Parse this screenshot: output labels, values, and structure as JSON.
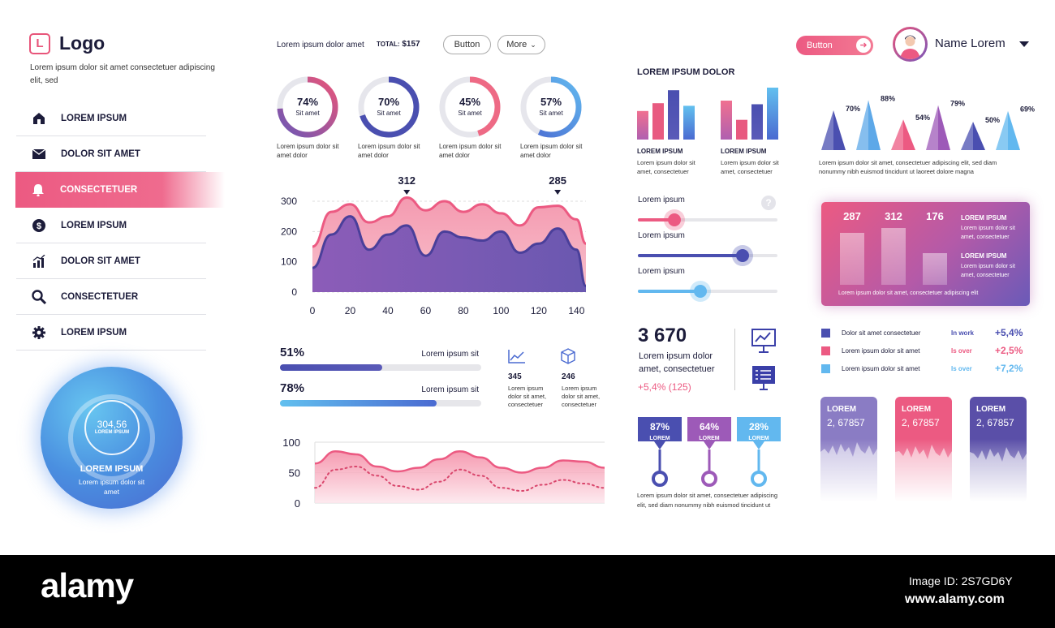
{
  "brand": {
    "logo_letter": "L",
    "logo_text": "Logo",
    "subtitle": "Lorem ipsum dolor sit amet consectetuer adipiscing elit, sed"
  },
  "nav": [
    {
      "label": "LOREM IPSUM",
      "icon": "home-icon"
    },
    {
      "label": "DOLOR SIT AMET",
      "icon": "mail-icon"
    },
    {
      "label": "CONSECTETUER",
      "icon": "bell-icon",
      "active": true
    },
    {
      "label": "LOREM IPSUM",
      "icon": "dollar-icon"
    },
    {
      "label": "DOLOR SIT AMET",
      "icon": "chart-icon"
    },
    {
      "label": "CONSECTETUER",
      "icon": "search-icon"
    },
    {
      "label": "LOREM IPSUM",
      "icon": "gear-icon"
    }
  ],
  "circle_widget": {
    "value": "304,56",
    "inner_label": "LOREM IPSUM",
    "title": "LOREM IPSUM",
    "text": "Lorem ipsum dolor sit amet"
  },
  "header": {
    "text": "Lorem ipsum dolor amet",
    "total_label": "TOTAL:",
    "total_value": "$157",
    "button_label": "Button",
    "more_label": "More",
    "pink_button_label": "Button",
    "user_name": "Name Lorem"
  },
  "donuts": [
    {
      "pct": "74%",
      "value": 0.74,
      "sub": "Sit amet",
      "caption": "Lorem ipsum dolor sit amet dolor",
      "c1": "#e8557a",
      "c2": "#6d57b5"
    },
    {
      "pct": "70%",
      "value": 0.7,
      "sub": "Sit amet",
      "caption": "Lorem ipsum dolor sit amet dolor",
      "c1": "#4a4fb0",
      "c2": "#4a4fb0"
    },
    {
      "pct": "45%",
      "value": 0.45,
      "sub": "Sit amet",
      "caption": "Lorem ipsum dolor sit amet dolor",
      "c1": "#ee6a85",
      "c2": "#ee6a85"
    },
    {
      "pct": "57%",
      "value": 0.57,
      "sub": "Sit amet",
      "caption": "Lorem ipsum dolor sit amet dolor",
      "c1": "#62b8ef",
      "c2": "#4a6ad1"
    }
  ],
  "chart_data": [
    {
      "type": "area",
      "x": [
        0,
        10,
        20,
        30,
        40,
        50,
        60,
        70,
        80,
        90,
        100,
        110,
        120,
        130,
        140,
        145
      ],
      "xticks": [
        "0",
        "20",
        "40",
        "60",
        "80",
        "100",
        "120",
        "140"
      ],
      "yticks": [
        "0",
        "100",
        "200",
        "300"
      ],
      "ylim": [
        0,
        300
      ],
      "series": [
        {
          "values": [
            150,
            265,
            290,
            230,
            250,
            312,
            270,
            300,
            265,
            290,
            260,
            220,
            280,
            285,
            240,
            160
          ],
          "color": "#f0718f"
        },
        {
          "values": [
            80,
            190,
            250,
            140,
            190,
            220,
            120,
            200,
            180,
            170,
            200,
            130,
            160,
            210,
            140,
            20
          ],
          "color": "#5a4fa8"
        }
      ],
      "annotations": [
        {
          "x": 50,
          "label": "312"
        },
        {
          "x": 130,
          "label": "285"
        }
      ]
    },
    {
      "type": "area",
      "x": [
        0,
        10,
        20,
        30,
        40,
        50,
        60,
        70,
        80,
        90,
        100,
        110,
        120,
        130,
        140
      ],
      "yticks": [
        "0",
        "50",
        "100"
      ],
      "ylim": [
        0,
        100
      ],
      "series": [
        {
          "values": [
            65,
            85,
            80,
            60,
            52,
            58,
            72,
            85,
            75,
            58,
            50,
            58,
            70,
            68,
            58
          ],
          "color": "#ec5a82"
        },
        {
          "values": [
            25,
            55,
            60,
            45,
            28,
            22,
            35,
            55,
            45,
            25,
            20,
            30,
            38,
            32,
            25
          ],
          "color": "#ec5a82",
          "dotted": true
        }
      ]
    },
    {
      "type": "bar",
      "title": "LOREM IPSUM DOLOR",
      "groups": [
        {
          "label": "LOREM IPSUM",
          "text": "Lorem ipsum dolor sit amet, consectetuer",
          "values": [
            55,
            70,
            95,
            65
          ]
        },
        {
          "label": "LOREM IPSUM",
          "text": "Lorem ipsum dolor sit amet, consectetuer",
          "values": [
            75,
            38,
            68,
            100
          ]
        }
      ]
    },
    {
      "type": "bar",
      "labels": [
        "70%",
        "88%",
        "54%",
        "79%",
        "50%",
        "69%"
      ],
      "values": [
        70,
        88,
        54,
        79,
        50,
        69
      ],
      "colors": [
        "#4a4fb0",
        "#5da8e8",
        "#ec5a82",
        "#9d5ab8",
        "#4a4fb0",
        "#62b8ef"
      ],
      "caption": "Lorem ipsum dolor sit amet, consectetuer adipiscing elit, sed diam nonummy nibh euismod tincidunt ut laoreet dolore magna"
    },
    {
      "type": "bar",
      "labels": [
        "287",
        "312",
        "176"
      ],
      "values": [
        287,
        312,
        176
      ],
      "side": [
        {
          "title": "LOREM IPSUM",
          "text": "Lorem ipsum dolor sit amet, consectetuer"
        },
        {
          "title": "LOREM IPSUM",
          "text": "Lorem ipsum dolor sit amet, consectetuer"
        }
      ],
      "footer": "Lorem ipsum dolor sit amet, consectetuer adipiscing elit"
    }
  ],
  "progress": [
    {
      "pct": "51%",
      "value": 0.51,
      "label": "Lorem ipsum sit"
    },
    {
      "pct": "78%",
      "value": 0.78,
      "label": "Lorem ipsum sit"
    }
  ],
  "mini_stats": [
    {
      "icon": "line-chart-icon",
      "value": "345",
      "text": "Lorem ipsum dolor sit amet, consectetuer"
    },
    {
      "icon": "cube-icon",
      "value": "246",
      "text": "Lorem ipsum dolor sit amet, consectetuer"
    }
  ],
  "sliders": [
    {
      "label": "Lorem ipsum",
      "value": 0.26,
      "color": "#ec5a82"
    },
    {
      "label": "Lorem ipsum",
      "value": 0.75,
      "color": "#4a4fb0"
    },
    {
      "label": "Lorem ipsum",
      "value": 0.45,
      "color": "#62b8ef"
    }
  ],
  "big_stat": {
    "value": "3 670",
    "text": "Lorem ipsum dolor amet, consectetuer",
    "change": "+5,4% (125)"
  },
  "markers": [
    {
      "pct": "87%",
      "label": "LOREM",
      "color": "#4a4fb0"
    },
    {
      "pct": "64%",
      "label": "LOREM",
      "color": "#9d5ab8"
    },
    {
      "pct": "28%",
      "label": "LOREM",
      "color": "#62b8ef"
    }
  ],
  "markers_caption": "Lorem ipsum dolor sit amet, consectetuer adipiscing elit, sed diam nonummy nibh euismod tincidunt ut",
  "legend_rows": [
    {
      "text": "Dolor sit amet consectetuer",
      "status": "In work",
      "change": "+5,4%",
      "color": "#4a4fb0"
    },
    {
      "text": "Lorem ipsum dolor sit amet",
      "status": "Is over",
      "change": "+2,5%",
      "color": "#ec5a82"
    },
    {
      "text": "Lorem ipsum dolor sit amet",
      "status": "Is over",
      "change": "+7,2%",
      "color": "#62b8ef"
    }
  ],
  "tall_cards": [
    {
      "title": "LOREM",
      "value": "2, 67857",
      "color": "#8a7cc4"
    },
    {
      "title": "LOREM",
      "value": "2, 67857",
      "color": "#ec5a82"
    },
    {
      "title": "LOREM",
      "value": "2, 67857",
      "color": "#5a4fa8"
    }
  ],
  "footer": {
    "brand": "alamy",
    "image_id": "Image ID: 2S7GD6Y",
    "url": "www.alamy.com"
  }
}
